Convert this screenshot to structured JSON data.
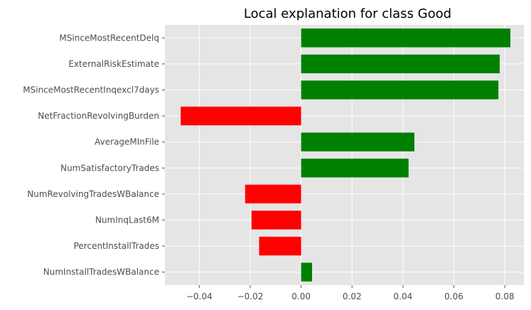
{
  "chart_data": {
    "type": "bar",
    "orientation": "horizontal",
    "title": "Local explanation for class Good",
    "xlabel": "",
    "ylabel": "",
    "categories": [
      "MSinceMostRecentDelq",
      "ExternalRiskEstimate",
      "MSinceMostRecentInqexcl7days",
      "NetFractionRevolvingBurden",
      "AverageMInFile",
      "NumSatisfactoryTrades",
      "NumRevolvingTradesWBalance",
      "NumInqLast6M",
      "PercentInstallTrades",
      "NumInstallTradesWBalance"
    ],
    "values": [
      0.0822,
      0.078,
      0.0775,
      -0.0473,
      0.0445,
      0.0422,
      -0.022,
      -0.0195,
      -0.0165,
      0.0043
    ],
    "xlim": [
      -0.0535,
      0.0875
    ],
    "xticks": [
      -0.04,
      -0.02,
      0.0,
      0.02,
      0.04,
      0.06,
      0.08
    ],
    "xtick_labels": [
      "−0.04",
      "−0.02",
      "0.00",
      "0.02",
      "0.04",
      "0.06",
      "0.08"
    ],
    "grid": true,
    "colors": {
      "positive": "#008000",
      "negative": "#ff0000",
      "plot_background": "#e5e5e5",
      "grid": "#ffffff"
    }
  }
}
